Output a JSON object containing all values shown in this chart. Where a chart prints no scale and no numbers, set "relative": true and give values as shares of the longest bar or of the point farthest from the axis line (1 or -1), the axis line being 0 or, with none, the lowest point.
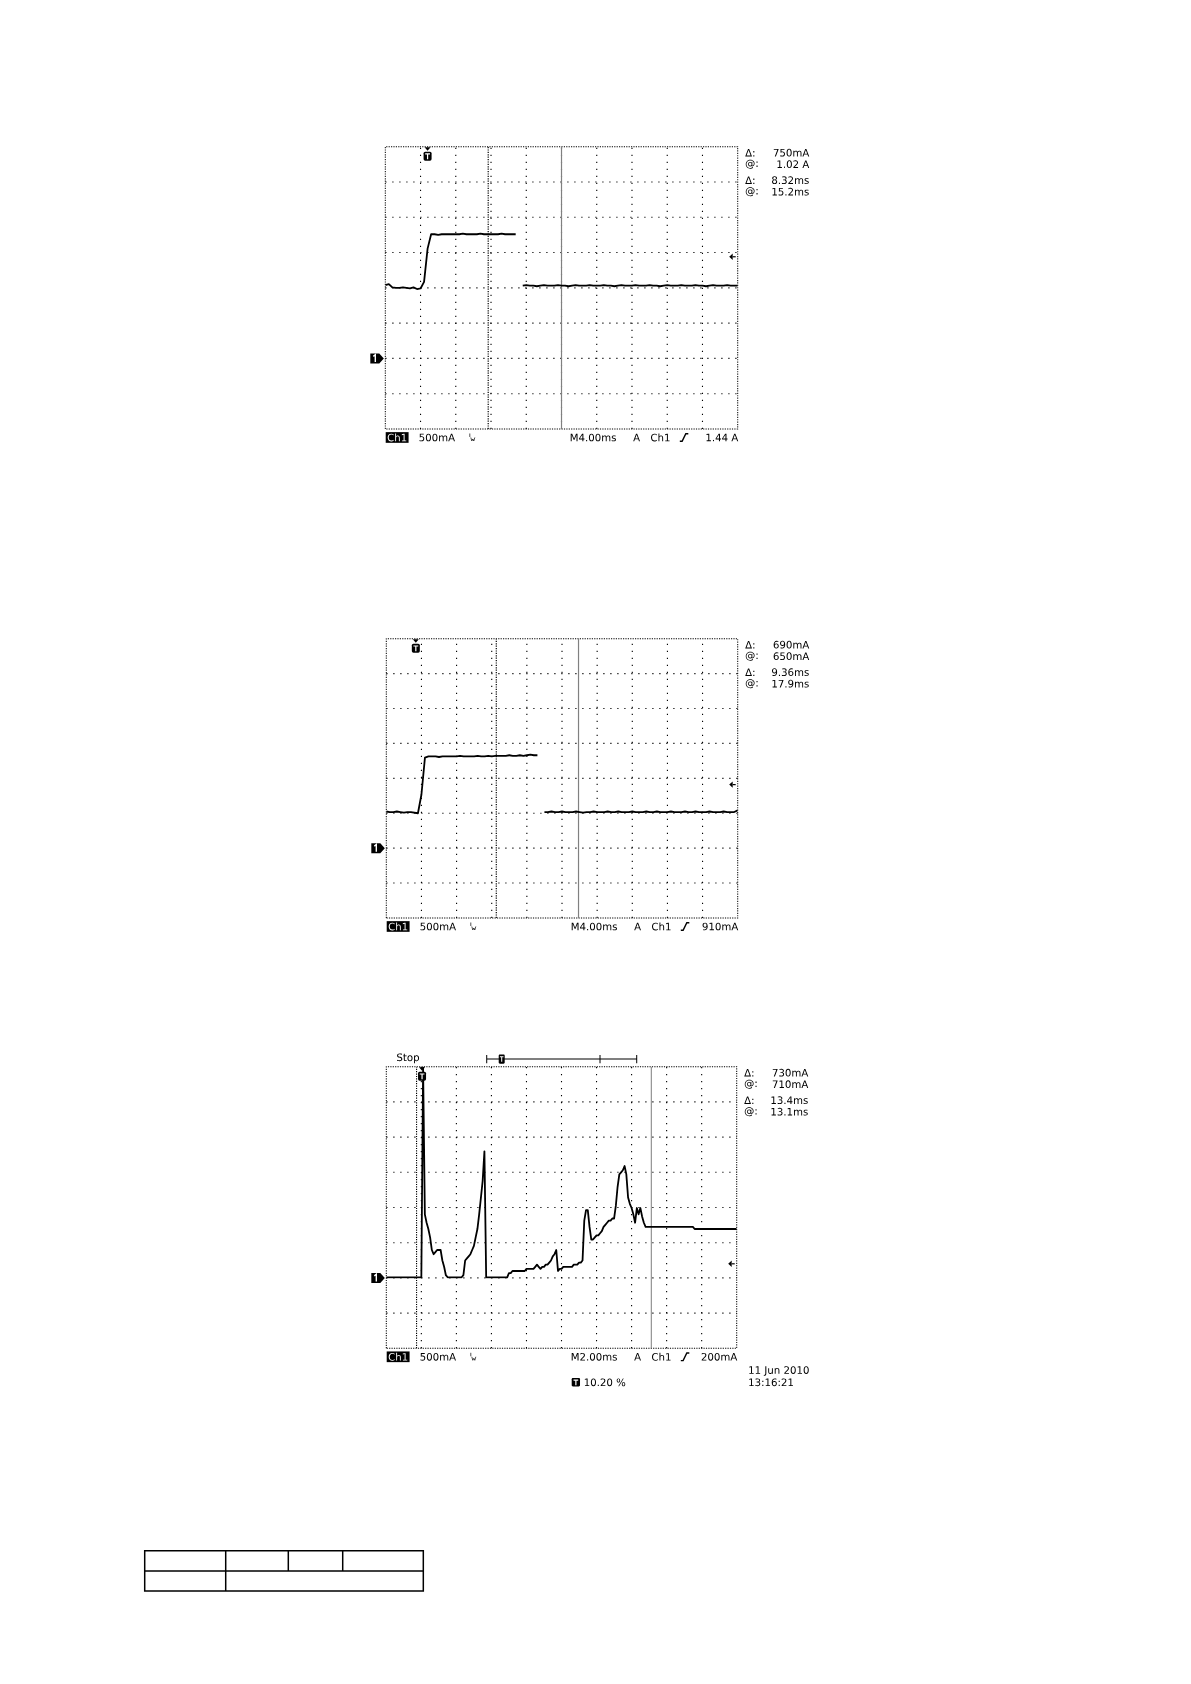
{
  "chart_data": [
    {
      "type": "line",
      "relative": true,
      "grid": true,
      "color": "#000000",
      "categories": [
        null,
        null,
        null,
        null,
        null,
        null,
        null,
        null,
        null,
        null,
        null,
        null,
        null,
        null,
        null,
        null,
        null,
        null,
        null,
        null,
        null,
        null,
        null,
        null,
        null,
        null,
        null,
        null,
        null,
        null,
        null,
        null,
        null,
        null,
        null,
        null,
        null,
        null,
        null,
        null,
        null,
        null,
        null,
        null,
        null,
        null,
        null,
        null,
        null,
        null,
        null,
        null,
        null,
        null,
        null,
        null,
        null,
        null,
        null,
        null,
        null,
        null,
        null,
        null,
        null,
        null,
        null,
        null,
        null,
        null,
        null,
        null,
        null,
        null,
        null,
        null,
        null,
        null,
        null,
        null,
        null,
        null,
        null,
        null,
        null,
        null,
        null,
        null,
        null,
        null,
        null,
        null,
        null,
        null,
        null,
        null,
        null,
        null,
        null,
        null,
        null
      ],
      "values": [
        0.07,
        0.09,
        0.03,
        0.02,
        0.02,
        0.03,
        0.02,
        0.01,
        0.03,
        0,
        0.01,
        0.13,
        0.73,
        0.99,
        0.99,
        0.98,
        0.99,
        0.99,
        0.99,
        0.99,
        0.99,
        0.99,
        1,
        0.99,
        0.99,
        0.99,
        0.99,
        1,
        0.99,
        0.99,
        0.99,
        0.99,
        0.99,
        1,
        0.99,
        0.99,
        0.99,
        0.99,
        null,
        0.06,
        0.07,
        0.06,
        0.06,
        0.05,
        0.06,
        0.07,
        0.06,
        0.06,
        0.06,
        0.07,
        0.06,
        0.06,
        0.05,
        0.06,
        0.07,
        0.06,
        0.06,
        0.06,
        0.07,
        0.06,
        0.06,
        0.06,
        0.07,
        0.06,
        0.06,
        0.05,
        0.06,
        0.07,
        0.06,
        0.06,
        0.06,
        0.07,
        0.06,
        0.06,
        0.06,
        0.07,
        0.06,
        0.06,
        0.05,
        0.06,
        0.07,
        0.06,
        0.06,
        0.06,
        0.07,
        0.06,
        0.06,
        0.06,
        0.07,
        0.06,
        0.06,
        0.05,
        0.06,
        0.07,
        0.06,
        0.06,
        0.06,
        0.07,
        0.06,
        0.06,
        0.06
      ],
      "annotations": [
        "Δ:",
        "750mA",
        "@:",
        "1.02 A",
        "Δ:",
        "8.32ms",
        "@:",
        "15.2ms",
        "Ch1",
        "500mA",
        "M4.00ms",
        "A",
        "Ch1",
        "1.44 A"
      ]
    },
    {
      "type": "line",
      "relative": true,
      "grid": true,
      "color": "#000000",
      "categories": [
        null,
        null,
        null,
        null,
        null,
        null,
        null,
        null,
        null,
        null,
        null,
        null,
        null,
        null,
        null,
        null,
        null,
        null,
        null,
        null,
        null,
        null,
        null,
        null,
        null,
        null,
        null,
        null,
        null,
        null,
        null,
        null,
        null,
        null,
        null,
        null,
        null,
        null,
        null,
        null,
        null,
        null,
        null,
        null,
        null,
        null,
        null,
        null,
        null,
        null,
        null,
        null,
        null,
        null,
        null,
        null,
        null,
        null,
        null,
        null,
        null,
        null,
        null,
        null,
        null,
        null,
        null,
        null,
        null,
        null,
        null,
        null,
        null,
        null,
        null,
        null,
        null,
        null,
        null,
        null,
        null,
        null,
        null,
        null,
        null,
        null,
        null,
        null,
        null,
        null,
        null,
        null,
        null,
        null,
        null,
        null,
        null,
        null,
        null,
        null,
        null
      ],
      "values": [
        0.03,
        0.02,
        0.02,
        0.03,
        0.02,
        0.01,
        0.02,
        0.02,
        0.01,
        0,
        0.32,
        0.95,
        0.97,
        0.97,
        0.97,
        0.96,
        0.97,
        0.97,
        0.97,
        0.97,
        0.97,
        0.98,
        0.97,
        0.97,
        0.97,
        0.97,
        0.98,
        0.97,
        0.97,
        0.98,
        0.97,
        0.98,
        0.98,
        0.98,
        0.98,
        0.99,
        0.98,
        0.98,
        0.99,
        0.98,
        0.99,
        1,
        0.99,
        0.99,
        null,
        0.02,
        0.02,
        0.03,
        0.02,
        0.02,
        0.03,
        0.02,
        0.02,
        0.02,
        0.03,
        0.02,
        0.01,
        0.02,
        0.02,
        0.03,
        0.02,
        0.02,
        0.02,
        0.03,
        0.02,
        0.02,
        0.03,
        0.02,
        0.02,
        0.02,
        0.03,
        0.02,
        0.02,
        0.02,
        0.03,
        0.02,
        0.02,
        0.03,
        0.02,
        0.02,
        0.02,
        0.03,
        0.02,
        0.02,
        0.02,
        0.03,
        0.02,
        0.02,
        0.03,
        0.02,
        0.02,
        0.02,
        0.03,
        0.02,
        0.02,
        0.02,
        0.03,
        0.02,
        0.02,
        0.02,
        0.05
      ],
      "annotations": [
        "Δ:",
        "690mA",
        "@:",
        "650mA",
        "Δ:",
        "9.36ms",
        "@:",
        "17.9ms",
        "Ch1",
        "500mA",
        "M4.00ms",
        "A",
        "Ch1",
        "910mA"
      ]
    },
    {
      "type": "line",
      "relative": true,
      "grid": true,
      "color": "#000000",
      "categories": [
        null,
        null,
        null,
        null,
        null,
        null,
        null,
        null,
        null,
        null,
        null,
        null,
        null,
        null,
        null,
        null,
        null,
        null,
        null,
        null,
        null,
        null,
        null,
        null,
        null,
        null,
        null,
        null,
        null,
        null,
        null,
        null,
        null,
        null,
        null,
        null,
        null,
        null,
        null,
        null,
        null,
        null,
        null,
        null,
        null,
        null,
        null,
        null,
        null,
        null,
        null,
        null,
        null,
        null,
        null,
        null,
        null,
        null,
        null,
        null,
        null,
        null,
        null,
        null,
        null,
        null,
        null,
        null,
        null,
        null,
        null,
        null,
        null,
        null,
        null,
        null,
        null,
        null,
        null,
        null,
        null,
        null,
        null,
        null,
        null,
        null,
        null,
        null,
        null,
        null,
        null,
        null,
        null,
        null,
        null,
        null,
        null,
        null,
        null,
        null,
        null,
        null,
        null,
        null,
        null,
        null,
        null,
        null,
        null,
        null,
        null,
        null,
        null,
        null,
        null,
        null,
        null,
        null,
        null,
        null,
        null,
        null,
        null,
        null,
        null,
        null,
        null,
        null,
        null,
        null,
        null,
        null,
        null,
        null,
        null,
        null,
        null,
        null,
        null,
        null,
        null,
        null,
        null,
        null,
        null,
        null,
        null,
        null,
        null,
        null,
        null,
        null,
        null,
        null,
        null,
        null,
        null,
        null,
        null,
        null,
        null,
        null,
        null,
        null,
        null,
        null,
        null,
        null,
        null,
        null,
        null,
        null,
        null,
        null,
        null,
        null,
        null,
        null,
        null,
        null,
        null,
        null,
        null,
        null,
        null,
        null,
        null,
        null,
        null,
        null,
        null,
        null,
        null,
        null,
        null,
        null,
        null,
        null,
        null,
        null,
        null
      ],
      "values": [
        0,
        0,
        0,
        0,
        0,
        0,
        0,
        0,
        0,
        0,
        0,
        0,
        0,
        0,
        0,
        0,
        0,
        0,
        0,
        0,
        0,
        1,
        0.3,
        0.26,
        0.23,
        0.19,
        0.13,
        0.11,
        0.12,
        0.13,
        0.13,
        0.13,
        0.08,
        0.05,
        0.01,
        0,
        0,
        0,
        0,
        0,
        0,
        0,
        0,
        0,
        0.01,
        0.08,
        0.09,
        0.1,
        0.11,
        0.13,
        0.15,
        0.19,
        0.23,
        0.3,
        0.38,
        0.46,
        0.6,
        0,
        0,
        0,
        0,
        0,
        0,
        0,
        0,
        0,
        0,
        0,
        0,
        0,
        0.02,
        0.02,
        0.03,
        0.03,
        0.03,
        0.03,
        0.03,
        0.03,
        0.03,
        0.03,
        0.04,
        0.04,
        0.04,
        0.04,
        0.04,
        0.05,
        0.06,
        0.05,
        0.04,
        0.05,
        0.05,
        0.06,
        0.06,
        0.07,
        0.08,
        0.1,
        0.11,
        0.13,
        0.03,
        0.04,
        0.04,
        0.05,
        0.05,
        0.05,
        0.05,
        0.05,
        0.05,
        0.06,
        0.06,
        0.06,
        0.07,
        0.07,
        0.08,
        0.27,
        0.32,
        0.32,
        0.24,
        0.18,
        0.18,
        0.19,
        0.2,
        0.2,
        0.21,
        0.22,
        0.24,
        0.25,
        0.26,
        0.27,
        0.27,
        0.28,
        0.28,
        0.34,
        0.43,
        0.49,
        0.5,
        0.51,
        0.53,
        0.49,
        0.38,
        0.35,
        0.33,
        0.3,
        0.26,
        0.33,
        0.3,
        0.33,
        0.29,
        0.26,
        0.24,
        0.24,
        0.24,
        0.24,
        0.24,
        0.24,
        0.24,
        0.24,
        0.24,
        0.24,
        0.24,
        0.24,
        0.24,
        0.24,
        0.24,
        0.24,
        0.24,
        0.24,
        0.24,
        0.24,
        0.24,
        0.24,
        0.24,
        0.24,
        0.24,
        0.24,
        0.24,
        0.24,
        0.23,
        0.23,
        0.23,
        0.23,
        0.23,
        0.23,
        0.23,
        0.23,
        0.23,
        0.23,
        0.23,
        0.23,
        0.23,
        0.23,
        0.23,
        0.23,
        0.23,
        0.23,
        0.23,
        0.23,
        0.23,
        0.23,
        0.23,
        0.23,
        0.23
      ],
      "annotations": [
        "Δ:",
        "730mA",
        "@:",
        "710mA",
        "Δ:",
        "13.4ms",
        "@:",
        "13.1ms",
        "Ch1",
        "500mA",
        "M2.00ms",
        "A",
        "Ch1",
        "200mA",
        "Stop",
        "11 Jun 2010",
        "13:16:21",
        "10.20 %"
      ]
    }
  ]
}
